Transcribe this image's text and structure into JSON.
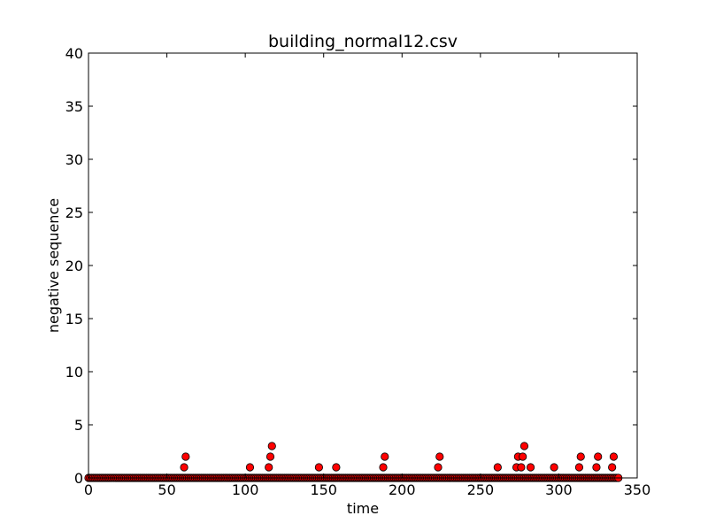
{
  "chart_data": {
    "type": "scatter",
    "title": "building_normal12.csv",
    "xlabel": "time",
    "ylabel": "negative sequence",
    "xlim": [
      0,
      350
    ],
    "ylim": [
      0,
      40
    ],
    "xticks": [
      0,
      50,
      100,
      150,
      200,
      250,
      300,
      350
    ],
    "yticks": [
      0,
      5,
      10,
      15,
      20,
      25,
      30,
      35,
      40
    ],
    "grid": false,
    "legend": "none",
    "marker_color": "#ff0000",
    "marker_edge_color": "#000000",
    "series": [
      {
        "x_range": [
          0,
          338
        ],
        "baseline_value": 0,
        "nonzero_points": [
          {
            "x": 61,
            "y": 1
          },
          {
            "x": 62,
            "y": 2
          },
          {
            "x": 103,
            "y": 1
          },
          {
            "x": 115,
            "y": 1
          },
          {
            "x": 116,
            "y": 2
          },
          {
            "x": 117,
            "y": 3
          },
          {
            "x": 147,
            "y": 1
          },
          {
            "x": 158,
            "y": 1
          },
          {
            "x": 188,
            "y": 1
          },
          {
            "x": 189,
            "y": 2
          },
          {
            "x": 223,
            "y": 1
          },
          {
            "x": 224,
            "y": 2
          },
          {
            "x": 261,
            "y": 1
          },
          {
            "x": 273,
            "y": 1
          },
          {
            "x": 274,
            "y": 2
          },
          {
            "x": 276,
            "y": 1
          },
          {
            "x": 277,
            "y": 2
          },
          {
            "x": 278,
            "y": 3
          },
          {
            "x": 282,
            "y": 1
          },
          {
            "x": 297,
            "y": 1
          },
          {
            "x": 313,
            "y": 1
          },
          {
            "x": 314,
            "y": 2
          },
          {
            "x": 324,
            "y": 1
          },
          {
            "x": 325,
            "y": 2
          },
          {
            "x": 334,
            "y": 1
          },
          {
            "x": 335,
            "y": 2
          }
        ]
      }
    ]
  }
}
